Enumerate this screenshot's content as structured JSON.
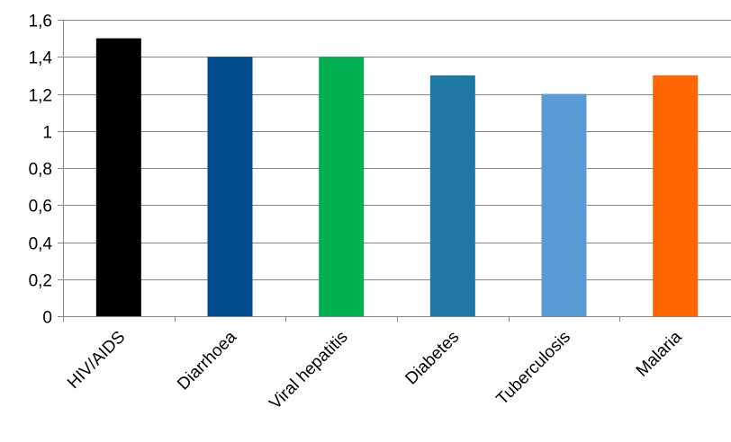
{
  "chart_data": {
    "type": "bar",
    "title": "",
    "xlabel": "",
    "ylabel": "",
    "categories": [
      "HIV/AIDS",
      "Diarrhoea",
      "Viral hepatitis",
      "Diabetes",
      "Tuberculosis",
      "Malaria"
    ],
    "values": [
      1.5,
      1.4,
      1.4,
      1.3,
      1.2,
      1.3
    ],
    "colors": [
      "#000000",
      "#004b8d",
      "#00b050",
      "#1f77a3",
      "#5b9bd5",
      "#ff6600"
    ],
    "ylim": [
      0,
      1.6
    ],
    "yticks": [
      0,
      0.2,
      0.4,
      0.6,
      0.8,
      1,
      1.2,
      1.4,
      1.6
    ],
    "ytick_labels": [
      "0",
      "0,2",
      "0,4",
      "0,6",
      "0,8",
      "1",
      "1,2",
      "1,4",
      "1,6"
    ],
    "grid": true,
    "legend": "none"
  }
}
